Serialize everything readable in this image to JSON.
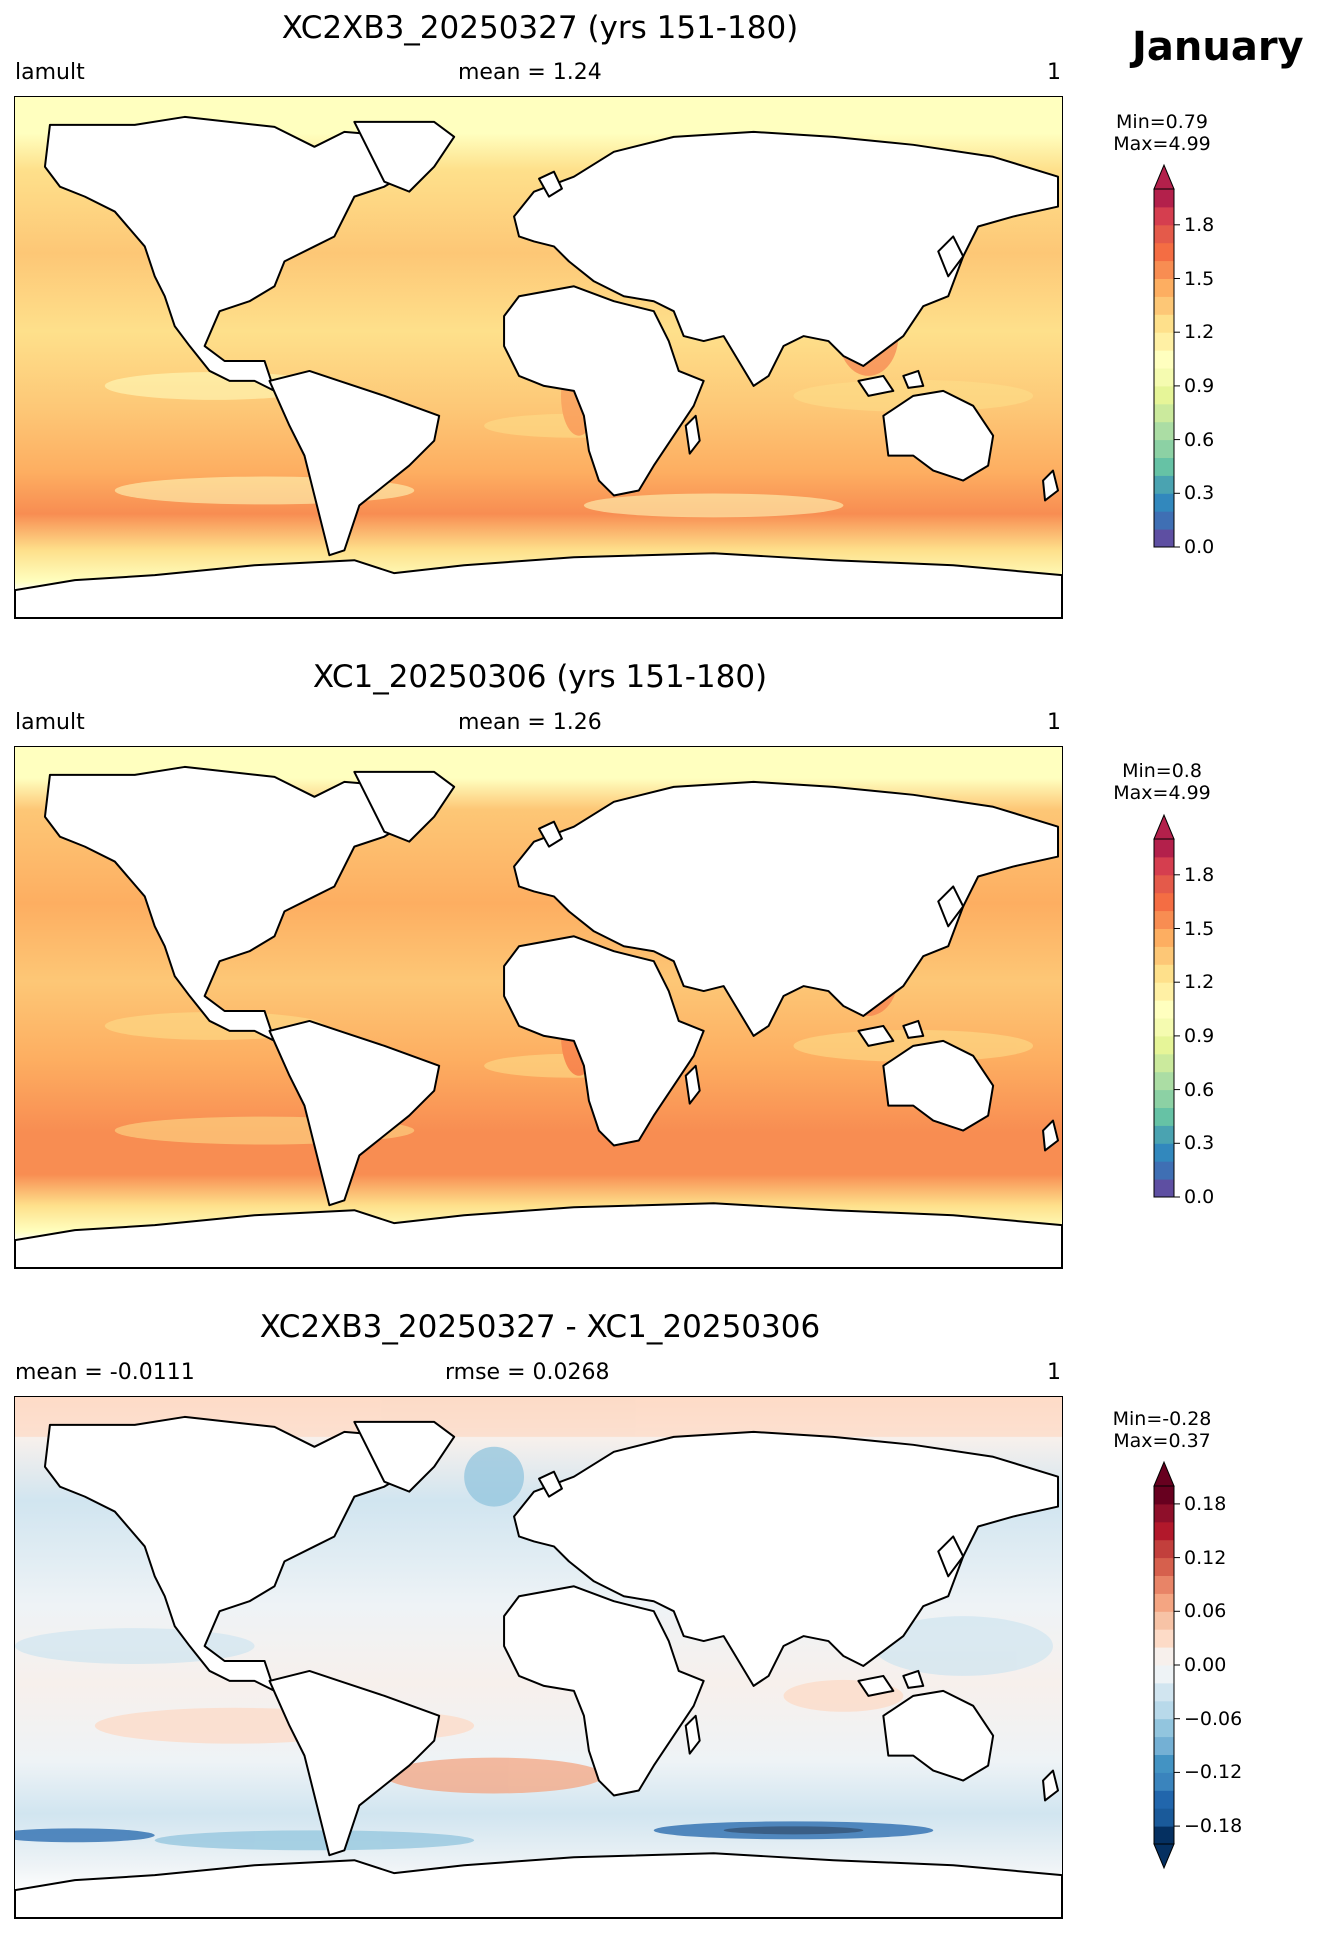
{
  "month": "January",
  "chart_data": [
    {
      "type": "heatmap",
      "title": "XC2XB3_20250327 (yrs 151-180)",
      "left_label": "lamult",
      "center_label": "mean = 1.24",
      "right_label": "1",
      "min_max": "Min=0.79\nMax=4.99",
      "colormap": "RdYlBu_r",
      "colorbar": {
        "ticks": [
          "0.0",
          "0.3",
          "0.6",
          "0.9",
          "1.2",
          "1.5",
          "1.8"
        ],
        "range": [
          0.0,
          2.0
        ],
        "colors": [
          "#5e4fa2",
          "#3f6fb4",
          "#3288bd",
          "#4aa3b1",
          "#66c2a5",
          "#8cd1a4",
          "#abdda4",
          "#cbea9d",
          "#e6f598",
          "#f5fbb0",
          "#ffffbf",
          "#fff0a4",
          "#fee08b",
          "#fdc776",
          "#fdae61",
          "#f88d52",
          "#f46d43",
          "#e45a4a",
          "#d53e4f",
          "#b3204b"
        ]
      }
    },
    {
      "type": "heatmap",
      "title": "XC1_20250306 (yrs 151-180)",
      "left_label": "lamult",
      "center_label": "mean = 1.26",
      "right_label": "1",
      "min_max": "Min=0.8\nMax=4.99",
      "colormap": "RdYlBu_r",
      "colorbar": {
        "ticks": [
          "0.0",
          "0.3",
          "0.6",
          "0.9",
          "1.2",
          "1.5",
          "1.8"
        ],
        "range": [
          0.0,
          2.0
        ],
        "colors": [
          "#5e4fa2",
          "#3f6fb4",
          "#3288bd",
          "#4aa3b1",
          "#66c2a5",
          "#8cd1a4",
          "#abdda4",
          "#cbea9d",
          "#e6f598",
          "#f5fbb0",
          "#ffffbf",
          "#fff0a4",
          "#fee08b",
          "#fdc776",
          "#fdae61",
          "#f88d52",
          "#f46d43",
          "#e45a4a",
          "#d53e4f",
          "#b3204b"
        ]
      }
    },
    {
      "type": "heatmap",
      "title": "XC2XB3_20250327 - XC1_20250306",
      "left_label": "mean = -0.0111",
      "center_label": "rmse = 0.0268",
      "right_label": "1",
      "min_max": "Min=-0.28\nMax=0.37",
      "colormap": "RdBu_r",
      "colorbar": {
        "ticks": [
          "−0.18",
          "−0.12",
          "−0.06",
          "0.00",
          "0.06",
          "0.12",
          "0.18"
        ],
        "range": [
          -0.2,
          0.2
        ],
        "colors": [
          "#053061",
          "#1a5a9a",
          "#2166ac",
          "#3a84bd",
          "#4393c3",
          "#74b0d4",
          "#92c5de",
          "#b8d9ea",
          "#d1e5f0",
          "#eef3f6",
          "#f7f0ec",
          "#fddbc7",
          "#f7c3a6",
          "#f4a582",
          "#e88467",
          "#d6604d",
          "#c23f3c",
          "#b2182b",
          "#8e0f2a",
          "#67001f"
        ]
      }
    }
  ]
}
